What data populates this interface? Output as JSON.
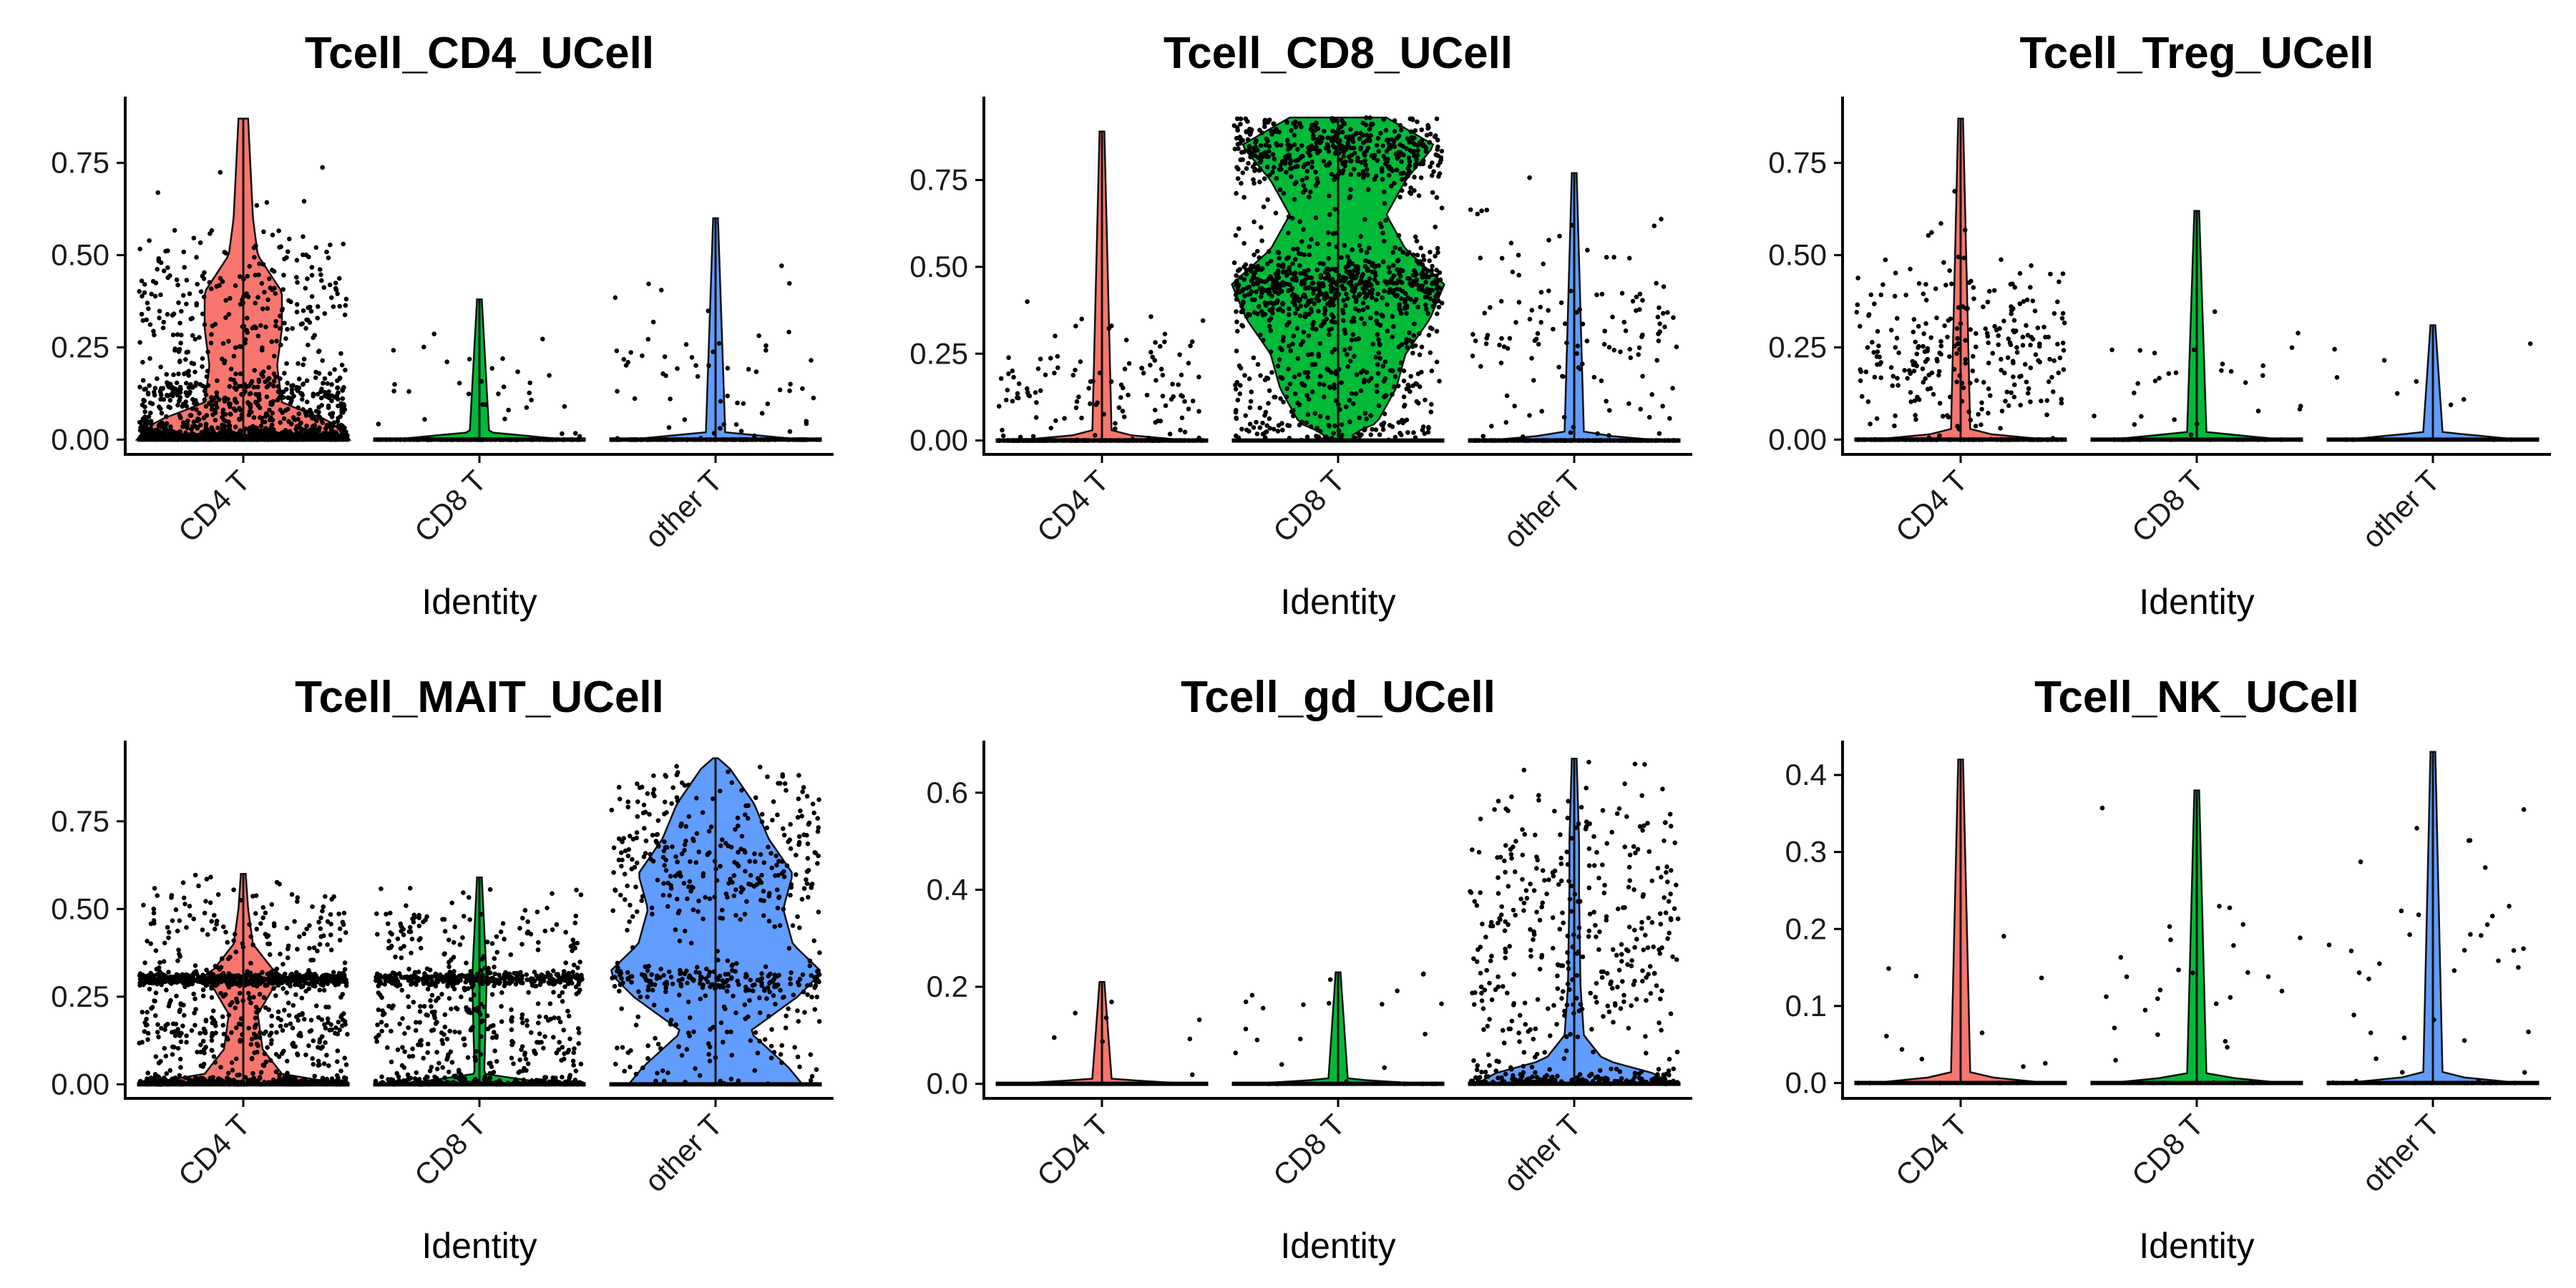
{
  "colors": {
    "CD4 T": "#F8766D",
    "CD8 T": "#00BA38",
    "other T": "#619CFF"
  },
  "chart_data": [
    {
      "type": "violin",
      "title": "Tcell_CD4_UCell",
      "xlabel": "Identity",
      "ylabel": "",
      "categories": [
        "CD4 T",
        "CD8 T",
        "other T"
      ],
      "ylim": [
        -0.04,
        0.92
      ],
      "yticks": [
        0.0,
        0.25,
        0.5,
        0.75
      ],
      "groups": [
        {
          "name": "CD4 T",
          "max": 0.87,
          "n_points": 1500,
          "modes": [
            [
              0.0,
              0.55,
              0.02
            ],
            [
              0.1,
              0.25,
              0.05
            ],
            [
              0.35,
              0.2,
              0.12
            ]
          ],
          "widths": [
            [
              0,
              0.22
            ],
            [
              0.05,
              0.18
            ],
            [
              0.1,
              0.08
            ],
            [
              0.2,
              0.07
            ],
            [
              0.3,
              0.08
            ],
            [
              0.4,
              0.08
            ],
            [
              0.5,
              0.03
            ],
            [
              0.6,
              0.02
            ],
            [
              0.87,
              0.01
            ]
          ]
        },
        {
          "name": "CD8 T",
          "max": 0.38,
          "n_points": 130,
          "modes": [
            [
              0.0,
              0.7,
              0.0
            ],
            [
              0.15,
              0.3,
              0.1
            ]
          ],
          "widths": [
            [
              0,
              0.18
            ],
            [
              0.02,
              0.02
            ],
            [
              0.38,
              0.005
            ]
          ]
        },
        {
          "name": "other T",
          "max": 0.6,
          "n_points": 160,
          "modes": [
            [
              0.0,
              0.6,
              0.0
            ],
            [
              0.2,
              0.4,
              0.12
            ]
          ],
          "widths": [
            [
              0,
              0.18
            ],
            [
              0.02,
              0.02
            ],
            [
              0.6,
              0.005
            ]
          ]
        }
      ]
    },
    {
      "type": "violin",
      "title": "Tcell_CD8_UCell",
      "xlabel": "Identity",
      "ylabel": "",
      "categories": [
        "CD4 T",
        "CD8 T",
        "other T"
      ],
      "ylim": [
        -0.04,
        0.98
      ],
      "yticks": [
        0.0,
        0.25,
        0.5,
        0.75
      ],
      "groups": [
        {
          "name": "CD4 T",
          "max": 0.89,
          "n_points": 260,
          "modes": [
            [
              0.0,
              0.5,
              0.0
            ],
            [
              0.15,
              0.5,
              0.1
            ]
          ],
          "widths": [
            [
              0,
              0.18
            ],
            [
              0.02,
              0.02
            ],
            [
              0.89,
              0.005
            ]
          ]
        },
        {
          "name": "CD8 T",
          "max": 0.93,
          "n_points": 1400,
          "modes": [
            [
              0.85,
              0.35,
              0.07
            ],
            [
              0.45,
              0.35,
              0.05
            ],
            [
              0.25,
              0.3,
              0.2
            ]
          ],
          "widths": [
            [
              0.02,
              0.03
            ],
            [
              0.05,
              0.08
            ],
            [
              0.15,
              0.12
            ],
            [
              0.25,
              0.14
            ],
            [
              0.35,
              0.19
            ],
            [
              0.45,
              0.22
            ],
            [
              0.55,
              0.14
            ],
            [
              0.65,
              0.1
            ],
            [
              0.75,
              0.14
            ],
            [
              0.85,
              0.2
            ],
            [
              0.93,
              0.1
            ]
          ]
        },
        {
          "name": "other T",
          "max": 0.77,
          "n_points": 240,
          "modes": [
            [
              0.0,
              0.4,
              0.0
            ],
            [
              0.3,
              0.6,
              0.18
            ]
          ],
          "widths": [
            [
              0,
              0.18
            ],
            [
              0.02,
              0.02
            ],
            [
              0.77,
              0.005
            ]
          ]
        }
      ]
    },
    {
      "type": "violin",
      "title": "Tcell_Treg_UCell",
      "xlabel": "Identity",
      "ylabel": "",
      "categories": [
        "CD4 T",
        "CD8 T",
        "other T"
      ],
      "ylim": [
        -0.04,
        0.92
      ],
      "yticks": [
        0.0,
        0.25,
        0.5,
        0.75
      ],
      "groups": [
        {
          "name": "CD4 T",
          "max": 0.87,
          "n_points": 380,
          "modes": [
            [
              0.0,
              0.3,
              0.0
            ],
            [
              0.25,
              0.7,
              0.13
            ]
          ],
          "widths": [
            [
              0,
              0.18
            ],
            [
              0.02,
              0.02
            ],
            [
              0.87,
              0.005
            ]
          ]
        },
        {
          "name": "CD8 T",
          "max": 0.62,
          "n_points": 45,
          "modes": [
            [
              0.0,
              0.4,
              0.0
            ],
            [
              0.15,
              0.6,
              0.12
            ]
          ],
          "widths": [
            [
              0,
              0.18
            ],
            [
              0.02,
              0.02
            ],
            [
              0.62,
              0.005
            ]
          ]
        },
        {
          "name": "other T",
          "max": 0.31,
          "n_points": 12,
          "modes": [
            [
              0.0,
              0.3,
              0.0
            ],
            [
              0.15,
              0.7,
              0.1
            ]
          ],
          "widths": [
            [
              0,
              0.18
            ],
            [
              0.02,
              0.02
            ],
            [
              0.31,
              0.005
            ]
          ]
        }
      ]
    },
    {
      "type": "violin",
      "title": "Tcell_MAIT_UCell",
      "xlabel": "Identity",
      "ylabel": "",
      "categories": [
        "CD4 T",
        "CD8 T",
        "other T"
      ],
      "ylim": [
        -0.04,
        0.97
      ],
      "yticks": [
        0.0,
        0.25,
        0.5,
        0.75
      ],
      "groups": [
        {
          "name": "CD4 T",
          "max": 0.6,
          "n_points": 1300,
          "modes": [
            [
              0.3,
              0.4,
              0.01
            ],
            [
              0.0,
              0.25,
              0.01
            ],
            [
              0.15,
              0.25,
              0.1
            ],
            [
              0.45,
              0.1,
              0.08
            ]
          ],
          "widths": [
            [
              0,
              0.21
            ],
            [
              0.03,
              0.08
            ],
            [
              0.1,
              0.04
            ],
            [
              0.2,
              0.03
            ],
            [
              0.27,
              0.06
            ],
            [
              0.3,
              0.09
            ],
            [
              0.33,
              0.06
            ],
            [
              0.4,
              0.02
            ],
            [
              0.5,
              0.01
            ],
            [
              0.6,
              0.005
            ]
          ]
        },
        {
          "name": "CD8 T",
          "max": 0.59,
          "n_points": 900,
          "modes": [
            [
              0.3,
              0.35,
              0.01
            ],
            [
              0.0,
              0.2,
              0.01
            ],
            [
              0.15,
              0.35,
              0.1
            ],
            [
              0.45,
              0.1,
              0.06
            ]
          ],
          "widths": [
            [
              0,
              0.16
            ],
            [
              0.03,
              0.01
            ],
            [
              0.3,
              0.015
            ],
            [
              0.59,
              0.005
            ]
          ]
        },
        {
          "name": "other T",
          "max": 0.93,
          "n_points": 600,
          "modes": [
            [
              0.3,
              0.3,
              0.02
            ],
            [
              0.6,
              0.35,
              0.08
            ],
            [
              0.8,
              0.15,
              0.06
            ],
            [
              0.15,
              0.2,
              0.1
            ]
          ],
          "widths": [
            [
              0,
              0.18
            ],
            [
              0.05,
              0.15
            ],
            [
              0.15,
              0.07
            ],
            [
              0.25,
              0.17
            ],
            [
              0.32,
              0.22
            ],
            [
              0.4,
              0.16
            ],
            [
              0.5,
              0.14
            ],
            [
              0.6,
              0.16
            ],
            [
              0.7,
              0.11
            ],
            [
              0.8,
              0.08
            ],
            [
              0.9,
              0.03
            ],
            [
              0.93,
              0.005
            ]
          ]
        }
      ]
    },
    {
      "type": "violin",
      "title": "Tcell_gd_UCell",
      "xlabel": "Identity",
      "ylabel": "",
      "categories": [
        "CD4 T",
        "CD8 T",
        "other T"
      ],
      "ylim": [
        -0.03,
        0.7
      ],
      "yticks": [
        0.0,
        0.2,
        0.4,
        0.6
      ],
      "groups": [
        {
          "name": "CD4 T",
          "max": 0.21,
          "n_points": 8,
          "modes": [
            [
              0.0,
              0.3,
              0.0
            ],
            [
              0.12,
              0.7,
              0.05
            ]
          ],
          "widths": [
            [
              0,
              0.18
            ],
            [
              0.01,
              0.02
            ],
            [
              0.21,
              0.005
            ]
          ]
        },
        {
          "name": "CD8 T",
          "max": 0.23,
          "n_points": 25,
          "modes": [
            [
              0.0,
              0.2,
              0.0
            ],
            [
              0.12,
              0.8,
              0.06
            ]
          ],
          "widths": [
            [
              0,
              0.18
            ],
            [
              0.01,
              0.02
            ],
            [
              0.23,
              0.005
            ]
          ]
        },
        {
          "name": "other T",
          "max": 0.67,
          "n_points": 550,
          "modes": [
            [
              0.0,
              0.3,
              0.02
            ],
            [
              0.3,
              0.7,
              0.17
            ]
          ],
          "widths": [
            [
              0,
              0.2
            ],
            [
              0.02,
              0.17
            ],
            [
              0.05,
              0.06
            ],
            [
              0.1,
              0.02
            ],
            [
              0.2,
              0.013
            ],
            [
              0.4,
              0.01
            ],
            [
              0.5,
              0.01
            ],
            [
              0.67,
              0.005
            ]
          ]
        }
      ]
    },
    {
      "type": "violin",
      "title": "Tcell_NK_UCell",
      "xlabel": "Identity",
      "ylabel": "",
      "categories": [
        "CD4 T",
        "CD8 T",
        "other T"
      ],
      "ylim": [
        -0.02,
        0.44
      ],
      "yticks": [
        0.0,
        0.1,
        0.2,
        0.3,
        0.4
      ],
      "groups": [
        {
          "name": "CD4 T",
          "max": 0.42,
          "n_points": 16,
          "modes": [
            [
              0.0,
              0.2,
              0.0
            ],
            [
              0.1,
              0.8,
              0.08
            ]
          ],
          "widths": [
            [
              0,
              0.18
            ],
            [
              0.01,
              0.02
            ],
            [
              0.42,
              0.005
            ]
          ]
        },
        {
          "name": "CD8 T",
          "max": 0.38,
          "n_points": 32,
          "modes": [
            [
              0.0,
              0.2,
              0.0
            ],
            [
              0.12,
              0.8,
              0.08
            ]
          ],
          "widths": [
            [
              0,
              0.18
            ],
            [
              0.01,
              0.02
            ],
            [
              0.38,
              0.005
            ]
          ]
        },
        {
          "name": "other T",
          "max": 0.43,
          "n_points": 50,
          "modes": [
            [
              0.0,
              0.2,
              0.0
            ],
            [
              0.15,
              0.8,
              0.1
            ]
          ],
          "widths": [
            [
              0,
              0.18
            ],
            [
              0.01,
              0.02
            ],
            [
              0.43,
              0.005
            ]
          ]
        }
      ]
    }
  ]
}
